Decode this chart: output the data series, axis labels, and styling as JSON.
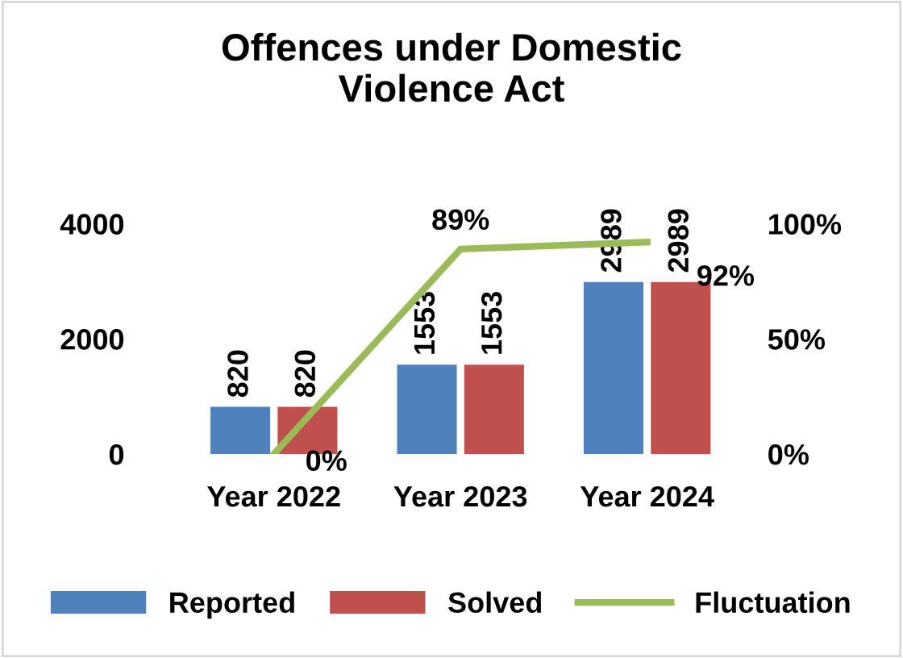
{
  "chart_data": {
    "type": "bar",
    "title": "Offences under Domestic\nViolence Act",
    "categories": [
      "Year 2022",
      "Year 2023",
      "Year 2024"
    ],
    "series": [
      {
        "name": "Reported",
        "color": "#4f81bd",
        "values": [
          820,
          1553,
          2989
        ],
        "value_labels": [
          "820",
          "1553",
          "2989"
        ]
      },
      {
        "name": "Solved",
        "color": "#c0504d",
        "values": [
          820,
          1553,
          2989
        ],
        "value_labels": [
          "820",
          "1553",
          "2989"
        ]
      },
      {
        "name": "Fluctuation",
        "type": "line",
        "axis": "y2",
        "color": "#9bbb59",
        "values": [
          0,
          89,
          92
        ],
        "value_labels": [
          "0%",
          "89%",
          "92%"
        ]
      }
    ],
    "ylim": [
      0,
      4000
    ],
    "yticks": [
      0,
      2000,
      4000
    ],
    "y2lim": [
      0,
      100
    ],
    "y2ticks": [
      {
        "value": 0,
        "label": "0%"
      },
      {
        "value": 50,
        "label": "50%"
      },
      {
        "value": 100,
        "label": "100%"
      }
    ],
    "legend": "bottom",
    "grid": false,
    "marker": "none"
  }
}
